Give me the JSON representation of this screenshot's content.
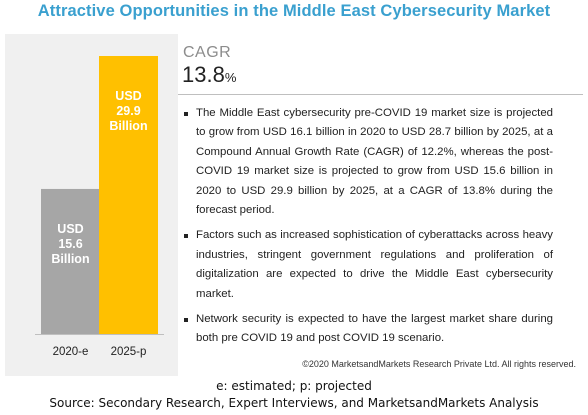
{
  "title": "Attractive Opportunities in the Middle East Cybersecurity  Market",
  "cagr": {
    "label": "CAGR",
    "value": "13.8",
    "unit": "%"
  },
  "bullets": [
    "The Middle East cybersecurity pre-COVID 19 market size is projected to grow from USD 16.1 billion in 2020 to USD 28.7 billion by 2025, at a Compound Annual Growth Rate (CAGR) of 12.2%, whereas the post-COVID 19 market size is projected to grow from USD 15.6 billion in 2020 to USD 29.9 billion by 2025, at a CAGR of 13.8% during the forecast period.",
    "Factors such as increased sophistication of cyberattacks across heavy industries, stringent government regulations and proliferation of digitalization are expected to drive the Middle East cybersecurity market.",
    "Network security is expected to have the largest market share during both pre COVID 19 and  post COVID 19 scenario."
  ],
  "copyright": "©2020 MarketsandMarkets  Research Private Ltd. All rights reserved.",
  "legend_note": "e: estimated; p: projected",
  "source": "Source: Secondary Research, Expert Interviews, and MarketsandMarkets Analysis",
  "colors": {
    "title": "#3aa0cf",
    "bar_2020": "#a6a6a6",
    "bar_2025": "#ffc000",
    "label_text": "#ffffff"
  },
  "chart_data": {
    "type": "bar",
    "categories": [
      "2020-e",
      "2025-p"
    ],
    "values": [
      15.6,
      29.9
    ],
    "bar_labels": [
      [
        "USD",
        "15.6",
        "Billion"
      ],
      [
        "USD",
        "29.9",
        "Billion"
      ]
    ],
    "title": "",
    "xlabel": "",
    "ylabel": "",
    "ylim": [
      0,
      29.9
    ],
    "grid": false,
    "legend": "none"
  }
}
